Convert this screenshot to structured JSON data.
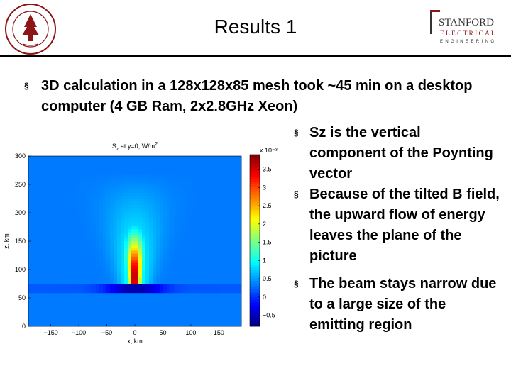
{
  "slide": {
    "title": "Results 1",
    "bullet_main": "3D calculation in a 128x128x85 mesh took ~45 min on a desktop computer (4 GB Ram, 2x2.8GHz Xeon)",
    "bullets_side": [
      "Sz is the vertical component of the Poynting vector",
      "Because of the tilted B field, the upward flow of energy leaves the plane of the picture",
      "The beam stays narrow due to a large size of the emitting region"
    ],
    "bullet_marker": "§"
  },
  "seal": {
    "text": "LELAND STANFORD JUNIOR UNIVERSITY"
  },
  "logo": {
    "line1": "STANFORD",
    "line2": "ELECTRICAL",
    "line3": "ENGINEERING"
  },
  "chart_data": {
    "type": "heatmap",
    "title": "Sz at y=0, W/m²",
    "xlabel": "x, km",
    "ylabel": "z, km",
    "x_ticks": [
      -150,
      -100,
      -50,
      0,
      50,
      100,
      150
    ],
    "y_ticks": [
      0,
      50,
      100,
      150,
      200,
      250,
      300
    ],
    "xlim": [
      -190,
      190
    ],
    "ylim": [
      0,
      300
    ],
    "colorbar": {
      "multiplier": "x 10⁻³",
      "ticks": [
        -0.5,
        0,
        0.5,
        1,
        1.5,
        2,
        2.5,
        3,
        3.5
      ],
      "range": [
        -0.8,
        3.9
      ]
    },
    "feature": {
      "beam_center_x": 0,
      "beam_base_z": 75,
      "beam_top_z": 270,
      "peak_value": 3.8,
      "negative_layer_z": [
        57,
        75
      ],
      "negative_value": -0.6
    }
  }
}
